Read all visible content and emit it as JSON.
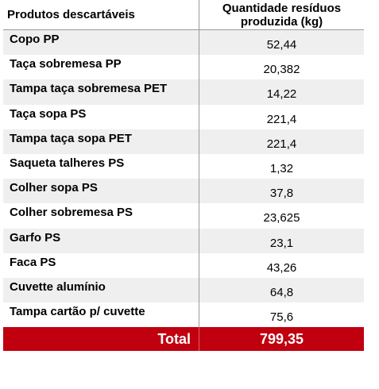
{
  "table": {
    "headers": {
      "product": "Produtos descartáveis",
      "quantity": "Quantidade resíduos produzida (kg)"
    },
    "rows": [
      {
        "product": "Copo PP",
        "quantity": "52,44"
      },
      {
        "product": "Taça sobremesa PP",
        "quantity": "20,382"
      },
      {
        "product": "Tampa taça sobremesa PET",
        "quantity": "14,22"
      },
      {
        "product": "Taça sopa PS",
        "quantity": "221,4"
      },
      {
        "product": "Tampa taça sopa PET",
        "quantity": "221,4"
      },
      {
        "product": "Saqueta talheres PS",
        "quantity": "1,32"
      },
      {
        "product": "Colher sopa PS",
        "quantity": "37,8"
      },
      {
        "product": "Colher sobremesa PS",
        "quantity": "23,625"
      },
      {
        "product": "Garfo PS",
        "quantity": "23,1"
      },
      {
        "product": "Faca PS",
        "quantity": "43,26"
      },
      {
        "product": "Cuvette alumínio",
        "quantity": "64,8"
      },
      {
        "product": "Tampa cartão p/ cuvette",
        "quantity": "75,6"
      }
    ],
    "total": {
      "label": "Total",
      "value": "799,35"
    },
    "colors": {
      "total_background": "#c0000f",
      "shaded_row": "#efefef"
    }
  }
}
